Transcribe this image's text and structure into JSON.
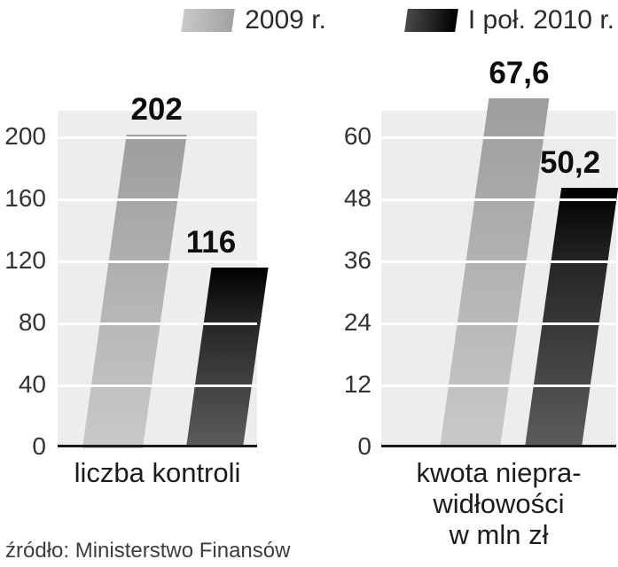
{
  "legend": {
    "items": [
      {
        "label": "2009 r.",
        "color": "#b2b2b2"
      },
      {
        "label": "I poł. 2010 r.",
        "color": "#1a1a1a"
      }
    ]
  },
  "chart_data": [
    {
      "type": "bar",
      "title": "liczba kontroli",
      "title_display": "liczba kontroli",
      "categories": [
        "liczba kontroli"
      ],
      "series": [
        {
          "name": "2009 r.",
          "values": [
            202
          ],
          "labels": [
            "202"
          ]
        },
        {
          "name": "I poł. 2010 r.",
          "values": [
            116
          ],
          "labels": [
            "116"
          ]
        }
      ],
      "yticks": [
        0,
        40,
        80,
        120,
        160,
        200
      ],
      "ylim": [
        0,
        217
      ],
      "grid": true,
      "legend_position": "top"
    },
    {
      "type": "bar",
      "title": "kwota nieprawidłowości w mln zł",
      "title_display": "kwota niepra-\nwidłowości\nw mln zł",
      "categories": [
        "kwota nieprawidłowości w mln zł"
      ],
      "series": [
        {
          "name": "2009 r.",
          "values": [
            67.6
          ],
          "labels": [
            "67,6"
          ]
        },
        {
          "name": "I poł. 2010 r.",
          "values": [
            50.2
          ],
          "labels": [
            "50,2"
          ]
        }
      ],
      "yticks": [
        0,
        12,
        24,
        36,
        48,
        60
      ],
      "ylim": [
        0,
        65
      ],
      "grid": true,
      "legend_position": "top"
    }
  ],
  "source": "źródło: Ministerstwo Finansów",
  "colors": {
    "series_2009": "#b2b2b2",
    "series_2010": "#1a1a1a",
    "plot_background": "#ededed",
    "gridline": "#ffffff"
  }
}
